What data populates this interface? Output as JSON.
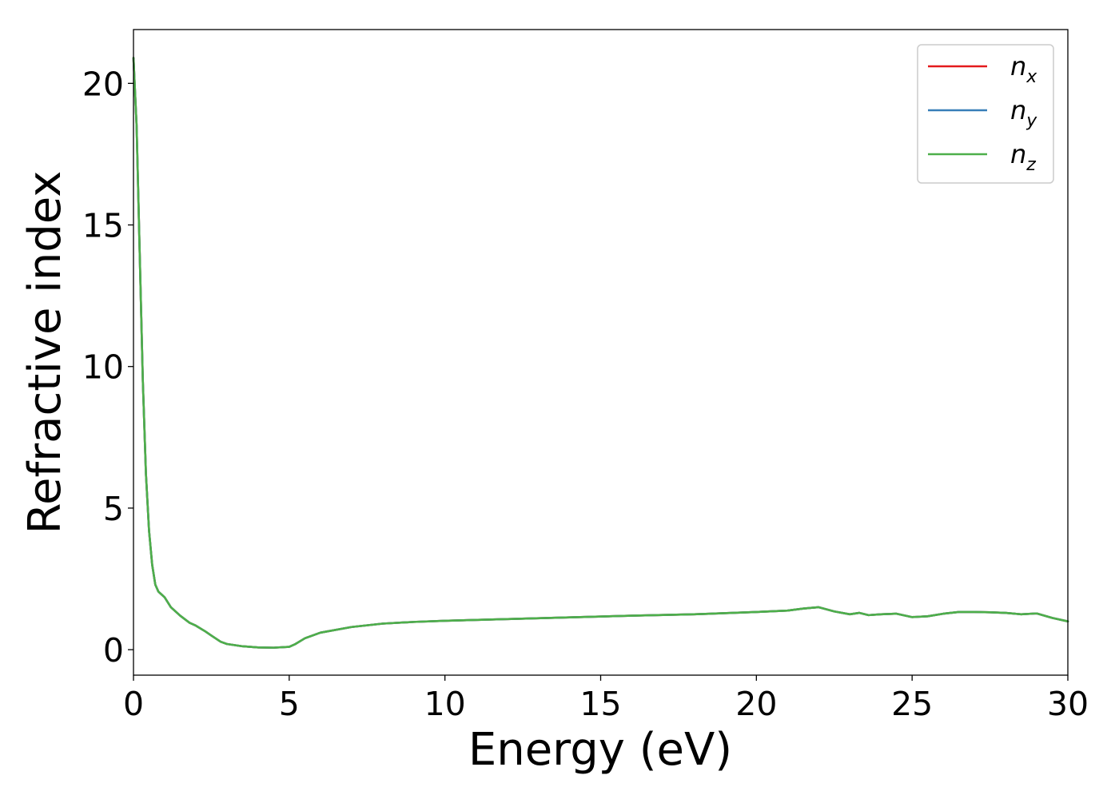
{
  "chart_data": {
    "type": "line",
    "xlabel": "Energy (eV)",
    "ylabel": "Refractive index",
    "xlim": [
      0,
      30
    ],
    "ylim": [
      -0.9,
      21.9
    ],
    "xticks": [
      "0",
      "5",
      "10",
      "15",
      "20",
      "25",
      "30"
    ],
    "yticks": [
      "0",
      "5",
      "10",
      "15",
      "20"
    ],
    "grid": false,
    "legend_position": "top-right",
    "series": [
      {
        "name": "n",
        "sub": "x",
        "color": "#e41a1c",
        "x": [
          0,
          0.1,
          0.2,
          0.3,
          0.4,
          0.5,
          0.6,
          0.7,
          0.8,
          0.9,
          1.0,
          1.2,
          1.5,
          1.8,
          2.0,
          2.3,
          2.5,
          2.8,
          3.0,
          3.5,
          4.0,
          4.5,
          5.0,
          5.2,
          5.5,
          6,
          7,
          8,
          9,
          10,
          12,
          14,
          16,
          18,
          20,
          21,
          21.5,
          22,
          22.5,
          23,
          23.3,
          23.6,
          24,
          24.5,
          25,
          25.5,
          26,
          26.5,
          27,
          27.5,
          28,
          28.5,
          29,
          29.5,
          30
        ],
        "y": [
          20.9,
          18.5,
          14,
          9.5,
          6.2,
          4.2,
          3.0,
          2.3,
          2.05,
          1.95,
          1.85,
          1.5,
          1.2,
          0.95,
          0.85,
          0.65,
          0.5,
          0.28,
          0.2,
          0.12,
          0.08,
          0.07,
          0.1,
          0.2,
          0.4,
          0.6,
          0.8,
          0.92,
          0.98,
          1.02,
          1.08,
          1.14,
          1.2,
          1.25,
          1.33,
          1.38,
          1.45,
          1.5,
          1.35,
          1.25,
          1.3,
          1.22,
          1.25,
          1.27,
          1.15,
          1.18,
          1.27,
          1.33,
          1.33,
          1.32,
          1.3,
          1.25,
          1.28,
          1.12,
          1.0
        ]
      },
      {
        "name": "n",
        "sub": "y",
        "color": "#377eb8",
        "x": [
          0,
          0.1,
          0.2,
          0.3,
          0.4,
          0.5,
          0.6,
          0.7,
          0.8,
          0.9,
          1.0,
          1.2,
          1.5,
          1.8,
          2.0,
          2.3,
          2.5,
          2.8,
          3.0,
          3.5,
          4.0,
          4.5,
          5.0,
          5.2,
          5.5,
          6,
          7,
          8,
          9,
          10,
          12,
          14,
          16,
          18,
          20,
          21,
          21.5,
          22,
          22.5,
          23,
          23.3,
          23.6,
          24,
          24.5,
          25,
          25.5,
          26,
          26.5,
          27,
          27.5,
          28,
          28.5,
          29,
          29.5,
          30
        ],
        "y": [
          20.9,
          18.5,
          14,
          9.5,
          6.2,
          4.2,
          3.0,
          2.3,
          2.05,
          1.95,
          1.85,
          1.5,
          1.2,
          0.95,
          0.85,
          0.65,
          0.5,
          0.28,
          0.2,
          0.12,
          0.08,
          0.07,
          0.1,
          0.2,
          0.4,
          0.6,
          0.8,
          0.92,
          0.98,
          1.02,
          1.08,
          1.14,
          1.2,
          1.25,
          1.33,
          1.38,
          1.45,
          1.5,
          1.35,
          1.25,
          1.3,
          1.22,
          1.25,
          1.27,
          1.15,
          1.18,
          1.27,
          1.33,
          1.33,
          1.32,
          1.3,
          1.25,
          1.28,
          1.12,
          1.0
        ]
      },
      {
        "name": "n",
        "sub": "z",
        "color": "#4daf4a",
        "x": [
          0,
          0.1,
          0.2,
          0.3,
          0.4,
          0.5,
          0.6,
          0.7,
          0.8,
          0.9,
          1.0,
          1.2,
          1.5,
          1.8,
          2.0,
          2.3,
          2.5,
          2.8,
          3.0,
          3.5,
          4.0,
          4.5,
          5.0,
          5.2,
          5.5,
          6,
          7,
          8,
          9,
          10,
          12,
          14,
          16,
          18,
          20,
          21,
          21.5,
          22,
          22.5,
          23,
          23.3,
          23.6,
          24,
          24.5,
          25,
          25.5,
          26,
          26.5,
          27,
          27.5,
          28,
          28.5,
          29,
          29.5,
          30
        ],
        "y": [
          20.9,
          18.5,
          14,
          9.5,
          6.2,
          4.2,
          3.0,
          2.3,
          2.05,
          1.95,
          1.85,
          1.5,
          1.2,
          0.95,
          0.85,
          0.65,
          0.5,
          0.28,
          0.2,
          0.12,
          0.08,
          0.07,
          0.1,
          0.2,
          0.4,
          0.6,
          0.8,
          0.92,
          0.98,
          1.02,
          1.08,
          1.14,
          1.2,
          1.25,
          1.33,
          1.38,
          1.45,
          1.5,
          1.35,
          1.25,
          1.3,
          1.22,
          1.25,
          1.27,
          1.15,
          1.18,
          1.27,
          1.33,
          1.33,
          1.32,
          1.3,
          1.25,
          1.28,
          1.12,
          1.0
        ]
      }
    ]
  }
}
